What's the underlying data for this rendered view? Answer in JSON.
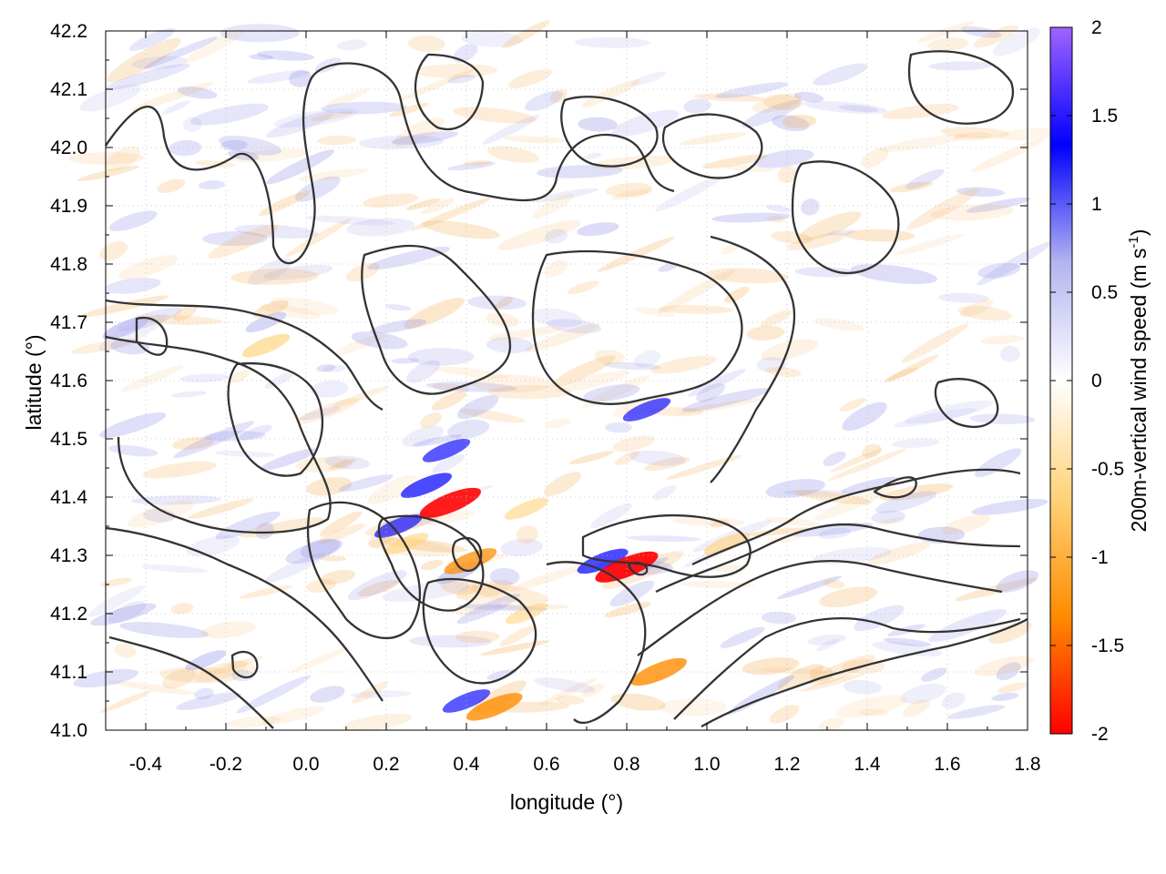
{
  "chart_data": {
    "type": "heatmap",
    "xlabel": "longitude (°)",
    "ylabel": "latitude (°)",
    "xlim": [
      -0.5,
      1.8
    ],
    "ylim": [
      41.0,
      42.2
    ],
    "x_ticks": [
      -0.4,
      -0.2,
      0.0,
      0.2,
      0.4,
      0.6,
      0.8,
      1.0,
      1.2,
      1.4,
      1.6,
      1.8
    ],
    "x_tick_labels": [
      "-0.4",
      "-0.2",
      "0.0",
      "0.2",
      "0.4",
      "0.6",
      "0.8",
      "1.0",
      "1.2",
      "1.4",
      "1.6",
      "1.8"
    ],
    "y_ticks": [
      41.0,
      41.1,
      41.2,
      41.3,
      41.4,
      41.5,
      41.6,
      41.7,
      41.8,
      41.9,
      42.0,
      42.1,
      42.2
    ],
    "y_tick_labels": [
      "41.0",
      "41.1",
      "41.2",
      "41.3",
      "41.4",
      "41.5",
      "41.6",
      "41.7",
      "41.8",
      "41.9",
      "42.0",
      "42.1",
      "42.2"
    ],
    "grid": true,
    "colorbar": {
      "label_main": "200m-vertical wind speed (m s",
      "label_sup": "-1",
      "label_end": ")",
      "range": [
        -2,
        2
      ],
      "ticks": [
        2,
        1.5,
        1,
        0.5,
        0,
        -0.5,
        -1,
        -1.5,
        -2
      ],
      "tick_labels": [
        "2",
        "1.5",
        "1",
        "0.5",
        "0",
        "-0.5",
        "-1",
        "-1.5",
        "-2"
      ],
      "colors": [
        "#ff0000",
        "#ff8c00",
        "#ffd27a",
        "#ffffff",
        "#b4b4f0",
        "#0000ff",
        "#a064ff"
      ]
    },
    "features": [
      {
        "type": "updraft",
        "lon": 0.3,
        "lat": 41.42,
        "value": 1.2
      },
      {
        "type": "updraft",
        "lon": 0.35,
        "lat": 41.48,
        "value": 1.0
      },
      {
        "type": "updraft",
        "lon": 0.85,
        "lat": 41.55,
        "value": 1.0
      },
      {
        "type": "updraft",
        "lon": -0.45,
        "lat": 41.69,
        "value": 0.9
      },
      {
        "type": "updraft",
        "lon": -0.1,
        "lat": 41.7,
        "value": 0.6
      },
      {
        "type": "updraft",
        "lon": 0.74,
        "lat": 41.29,
        "value": 1.2
      },
      {
        "type": "updraft",
        "lon": 0.4,
        "lat": 41.05,
        "value": 1.0
      },
      {
        "type": "updraft",
        "lon": 0.23,
        "lat": 41.35,
        "value": 1.0
      },
      {
        "type": "updraft",
        "lon": 0.38,
        "lat": 41.27,
        "value": 0.8
      },
      {
        "type": "updraft",
        "lon": -0.25,
        "lat": 41.12,
        "value": 0.6
      },
      {
        "type": "downdraft",
        "lon": 0.36,
        "lat": 41.39,
        "value": -1.8
      },
      {
        "type": "downdraft",
        "lon": 0.8,
        "lat": 41.28,
        "value": -1.9
      },
      {
        "type": "downdraft",
        "lon": 0.47,
        "lat": 41.04,
        "value": -1.5
      },
      {
        "type": "downdraft",
        "lon": 0.41,
        "lat": 41.29,
        "value": -1.3
      },
      {
        "type": "downdraft",
        "lon": 0.88,
        "lat": 41.1,
        "value": -1.5
      },
      {
        "type": "downdraft",
        "lon": -0.1,
        "lat": 41.66,
        "value": -1.0
      },
      {
        "type": "downdraft",
        "lon": 0.55,
        "lat": 41.38,
        "value": -0.8
      },
      {
        "type": "downdraft",
        "lon": 1.05,
        "lat": 41.32,
        "value": -0.9
      },
      {
        "type": "downdraft",
        "lon": 0.25,
        "lat": 41.32,
        "value": -0.8
      },
      {
        "type": "downdraft",
        "lon": 0.55,
        "lat": 41.2,
        "value": -0.7
      }
    ]
  }
}
